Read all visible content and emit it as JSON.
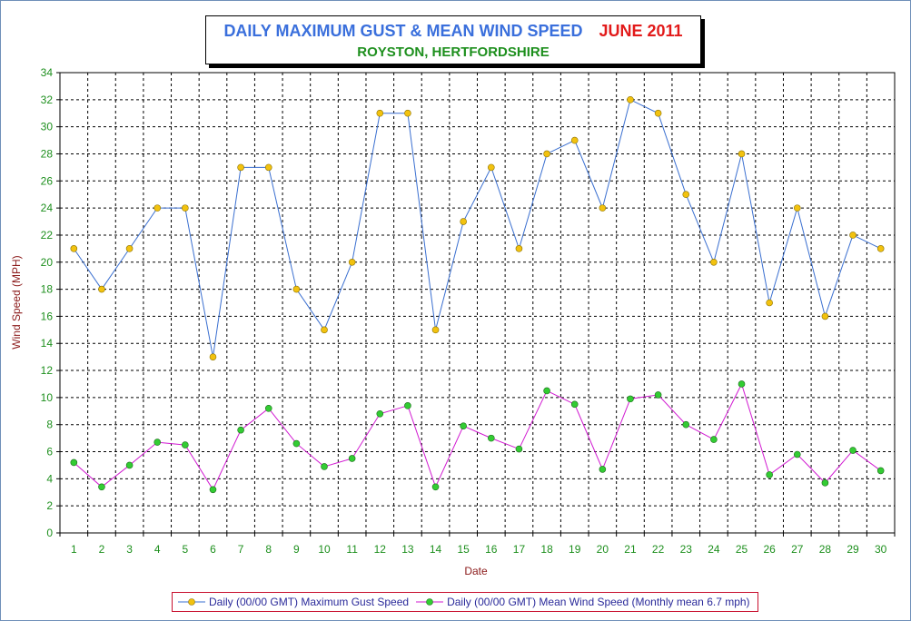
{
  "title": {
    "main": "DAILY MAXIMUM GUST & MEAN WIND SPEED",
    "month": "JUNE 2011",
    "subtitle": "ROYSTON, HERTFORDSHIRE"
  },
  "chart_data": {
    "type": "line",
    "xlabel": "Date",
    "ylabel": "Wind Speed (MPH)",
    "ylim": [
      0,
      34
    ],
    "ytick_step": 2,
    "grid": true,
    "legend_position": "bottom",
    "x": [
      1,
      2,
      3,
      4,
      5,
      6,
      7,
      8,
      9,
      10,
      11,
      12,
      13,
      14,
      15,
      16,
      17,
      18,
      19,
      20,
      21,
      22,
      23,
      24,
      25,
      26,
      27,
      28,
      29,
      30
    ],
    "series": [
      {
        "name": "Daily (00/00 GMT) Maximum Gust Speed",
        "line_color": "#3a6fd0",
        "marker_color": "#f2c20f",
        "values": [
          21,
          18,
          21,
          24,
          24,
          13,
          27,
          27,
          18,
          15,
          20,
          31,
          31,
          15,
          23,
          27,
          21,
          28,
          29,
          24,
          32,
          31,
          25,
          20,
          28,
          17,
          24,
          16,
          22,
          21
        ]
      },
      {
        "name": "Daily (00/00 GMT) Mean Wind Speed (Monthly mean 6.7 mph)",
        "line_color": "#d11ad1",
        "marker_color": "#33cc33",
        "values": [
          5.2,
          3.4,
          5.0,
          6.7,
          6.5,
          3.2,
          7.6,
          9.2,
          6.6,
          4.9,
          5.5,
          8.8,
          9.4,
          3.4,
          7.9,
          7.0,
          6.2,
          10.5,
          9.5,
          4.7,
          9.9,
          10.2,
          8.0,
          6.9,
          11.0,
          4.3,
          5.8,
          3.7,
          6.1,
          4.6
        ]
      }
    ]
  }
}
